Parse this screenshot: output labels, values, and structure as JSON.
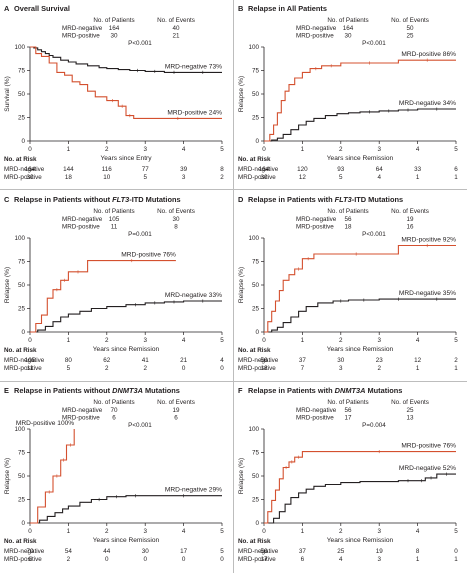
{
  "chart_data": [
    {
      "type": "line",
      "letter": "A",
      "title": "Overall Survival",
      "title_parts": [
        {
          "t": "Overall Survival",
          "i": false
        }
      ],
      "ylabel": "Survival (%)",
      "xlabel": "Years since Entry",
      "xlim": [
        0,
        5
      ],
      "ylim": [
        0,
        100
      ],
      "xticks": [
        "0",
        "1",
        "2",
        "3",
        "4",
        "5"
      ],
      "yticks": [
        "0",
        "25",
        "50",
        "75",
        "100"
      ],
      "table_headers": [
        "No. of Patients",
        "No. of Events"
      ],
      "table_rows": [
        [
          "MRD-negative",
          "164",
          "40"
        ],
        [
          "MRD-positive",
          "30",
          "21"
        ]
      ],
      "p_value": "P<0.001",
      "risk_title": "No. at Risk",
      "risk_rows": [
        {
          "label": "MRD-negative",
          "values": [
            "164",
            "144",
            "116",
            "77",
            "39",
            "8"
          ]
        },
        {
          "label": "MRD-positive",
          "values": [
            "30",
            "18",
            "10",
            "5",
            "3",
            "2"
          ]
        }
      ],
      "series": [
        {
          "name": "MRD-negative",
          "end_label": "MRD-negative",
          "end_value": "73%",
          "color": "#231f20",
          "x": [
            0,
            0.1,
            0.2,
            0.3,
            0.4,
            0.5,
            0.6,
            0.8,
            1.0,
            1.2,
            1.5,
            1.8,
            2.0,
            2.3,
            2.6,
            3.0,
            3.5,
            4.0,
            5.0
          ],
          "y": [
            100,
            99,
            97,
            95,
            93,
            91,
            89,
            86,
            84,
            82,
            80,
            78,
            77,
            76,
            75,
            74,
            73,
            73,
            73
          ]
        },
        {
          "name": "MRD-positive",
          "end_label": "MRD-positive",
          "end_value": "24%",
          "color": "#d4502f",
          "x": [
            0,
            0.15,
            0.3,
            0.5,
            0.7,
            0.9,
            1.1,
            1.3,
            1.5,
            1.7,
            2.0,
            2.3,
            2.5,
            2.7,
            5.0
          ],
          "y": [
            100,
            93,
            90,
            83,
            73,
            70,
            63,
            60,
            53,
            47,
            43,
            37,
            27,
            24,
            24
          ]
        }
      ]
    },
    {
      "type": "line",
      "letter": "B",
      "title": "Relapse in All Patients",
      "title_parts": [
        {
          "t": "Relapse in All Patients",
          "i": false
        }
      ],
      "ylabel": "Relapse (%)",
      "xlabel": "Years since Remission",
      "xlim": [
        0,
        5
      ],
      "ylim": [
        0,
        100
      ],
      "xticks": [
        "0",
        "1",
        "2",
        "3",
        "4",
        "5"
      ],
      "yticks": [
        "0",
        "25",
        "50",
        "75",
        "100"
      ],
      "table_headers": [
        "No. of Patients",
        "No. of Events"
      ],
      "table_rows": [
        [
          "MRD-negative",
          "164",
          "50"
        ],
        [
          "MRD-positive",
          "30",
          "25"
        ]
      ],
      "p_value": "P<0.001",
      "risk_title": "No. at Risk",
      "risk_rows": [
        {
          "label": "MRD-negative",
          "values": [
            "164",
            "120",
            "93",
            "64",
            "33",
            "6"
          ]
        },
        {
          "label": "MRD-positive",
          "values": [
            "30",
            "12",
            "5",
            "4",
            "1",
            "1"
          ]
        }
      ],
      "series": [
        {
          "name": "MRD-negative",
          "end_label": "MRD-negative",
          "end_value": "34%",
          "color": "#231f20",
          "x": [
            0,
            0.2,
            0.35,
            0.5,
            0.7,
            0.9,
            1.1,
            1.3,
            1.6,
            1.9,
            2.2,
            2.5,
            3.0,
            3.5,
            4.0,
            5.0
          ],
          "y": [
            0,
            1,
            3,
            7,
            12,
            17,
            21,
            24,
            27,
            29,
            30,
            31,
            32,
            33,
            34,
            34
          ]
        },
        {
          "name": "MRD-positive",
          "end_label": "MRD-positive",
          "end_value": "86%",
          "color": "#d4502f",
          "x": [
            0,
            0.15,
            0.25,
            0.35,
            0.45,
            0.55,
            0.65,
            0.8,
            1.0,
            1.2,
            1.5,
            2.0,
            3.5,
            5.0
          ],
          "y": [
            0,
            7,
            17,
            30,
            43,
            53,
            60,
            67,
            73,
            77,
            80,
            83,
            86,
            86
          ]
        }
      ]
    },
    {
      "type": "line",
      "letter": "C",
      "title": "Relapse in Patients without FLT3-ITD Mutations",
      "title_parts": [
        {
          "t": "Relapse in Patients without ",
          "i": false
        },
        {
          "t": "FLT3",
          "i": true
        },
        {
          "t": "-ITD Mutations",
          "i": false
        }
      ],
      "ylabel": "Relapse (%)",
      "xlabel": "Years since Remission",
      "xlim": [
        0,
        5
      ],
      "ylim": [
        0,
        100
      ],
      "xticks": [
        "0",
        "1",
        "2",
        "3",
        "4",
        "5"
      ],
      "yticks": [
        "0",
        "25",
        "50",
        "75",
        "100"
      ],
      "table_headers": [
        "No. of Patients",
        "No. of Events"
      ],
      "table_rows": [
        [
          "MRD-negative",
          "105",
          "30"
        ],
        [
          "MRD-positive",
          "11",
          "8"
        ]
      ],
      "p_value": "P=0.001",
      "risk_title": "No. at Risk",
      "risk_rows": [
        {
          "label": "MRD-negative",
          "values": [
            "105",
            "80",
            "62",
            "41",
            "21",
            "4"
          ]
        },
        {
          "label": "MRD-positive",
          "values": [
            "11",
            "5",
            "2",
            "2",
            "0",
            "0"
          ]
        }
      ],
      "series": [
        {
          "name": "MRD-negative",
          "end_label": "MRD-negative",
          "end_value": "33%",
          "color": "#231f20",
          "x": [
            0,
            0.2,
            0.4,
            0.6,
            0.8,
            1.0,
            1.3,
            1.6,
            2.0,
            2.5,
            3.0,
            3.5,
            4.0,
            5.0
          ],
          "y": [
            0,
            2,
            6,
            11,
            16,
            19,
            22,
            25,
            27,
            29,
            31,
            32,
            33,
            33
          ]
        },
        {
          "name": "MRD-positive",
          "end_label": "MRD-positive",
          "end_value": "76%",
          "color": "#d4502f",
          "x": [
            0,
            0.15,
            0.3,
            0.45,
            0.6,
            0.8,
            1.0,
            1.5,
            3.8
          ],
          "y": [
            0,
            9,
            18,
            36,
            45,
            55,
            64,
            76,
            76
          ]
        }
      ]
    },
    {
      "type": "line",
      "letter": "D",
      "title": "Relapse in Patients with FLT3-ITD Mutations",
      "title_parts": [
        {
          "t": "Relapse in Patients with ",
          "i": false
        },
        {
          "t": "FLT3",
          "i": true
        },
        {
          "t": "-ITD Mutations",
          "i": false
        }
      ],
      "ylabel": "Relapse (%)",
      "xlabel": "Years since Remission",
      "xlim": [
        0,
        5
      ],
      "ylim": [
        0,
        100
      ],
      "xticks": [
        "0",
        "1",
        "2",
        "3",
        "4",
        "5"
      ],
      "yticks": [
        "0",
        "25",
        "50",
        "75",
        "100"
      ],
      "table_headers": [
        "No. of Patients",
        "No. of Events"
      ],
      "table_rows": [
        [
          "MRD-negative",
          "56",
          "19"
        ],
        [
          "MRD-positive",
          "18",
          "16"
        ]
      ],
      "p_value": "P<0.001",
      "risk_title": "No. at Risk",
      "risk_rows": [
        {
          "label": "MRD-negative",
          "values": [
            "56",
            "37",
            "30",
            "23",
            "12",
            "2"
          ]
        },
        {
          "label": "MRD-positive",
          "values": [
            "18",
            "7",
            "3",
            "2",
            "1",
            "1"
          ]
        }
      ],
      "series": [
        {
          "name": "MRD-negative",
          "end_label": "MRD-negative",
          "end_value": "35%",
          "color": "#231f20",
          "x": [
            0,
            0.2,
            0.35,
            0.5,
            0.7,
            0.9,
            1.1,
            1.4,
            1.8,
            2.2,
            3.0,
            4.0,
            5.0
          ],
          "y": [
            0,
            2,
            5,
            10,
            16,
            22,
            27,
            31,
            33,
            34,
            35,
            35,
            35
          ]
        },
        {
          "name": "MRD-positive",
          "end_label": "MRD-positive",
          "end_value": "92%",
          "color": "#d4502f",
          "x": [
            0,
            0.1,
            0.2,
            0.3,
            0.4,
            0.5,
            0.65,
            0.8,
            1.0,
            1.3,
            3.5,
            5.0
          ],
          "y": [
            0,
            11,
            22,
            33,
            44,
            55,
            61,
            67,
            78,
            83,
            92,
            92
          ]
        }
      ]
    },
    {
      "type": "line",
      "letter": "E",
      "title": "Relapse in Patients without DNMT3A Mutations",
      "title_parts": [
        {
          "t": "Relapse in Patients without ",
          "i": false
        },
        {
          "t": "DNMT3A",
          "i": true
        },
        {
          "t": " Mutations",
          "i": false
        }
      ],
      "ylabel": "Relapse (%)",
      "xlabel": "Years since Remission",
      "xlim": [
        0,
        5
      ],
      "ylim": [
        0,
        100
      ],
      "xticks": [
        "0",
        "1",
        "2",
        "3",
        "4",
        "5"
      ],
      "yticks": [
        "0",
        "25",
        "50",
        "75",
        "100"
      ],
      "table_headers": [
        "No. of Patients",
        "No. of Events"
      ],
      "table_rows": [
        [
          "MRD-negative",
          "70",
          "19"
        ],
        [
          "MRD-positive",
          "6",
          "6"
        ]
      ],
      "p_value": "P<0.001",
      "risk_title": "No. at Risk",
      "risk_rows": [
        {
          "label": "MRD-negative",
          "values": [
            "70",
            "54",
            "44",
            "30",
            "17",
            "5"
          ]
        },
        {
          "label": "MRD-positive",
          "values": [
            "6",
            "2",
            "0",
            "0",
            "0",
            "0"
          ]
        }
      ],
      "series": [
        {
          "name": "MRD-negative",
          "end_label": "MRD-negative",
          "end_value": "29%",
          "color": "#231f20",
          "x": [
            0,
            0.25,
            0.45,
            0.65,
            0.85,
            1.0,
            1.3,
            1.6,
            2.0,
            2.5,
            3.0,
            5.0
          ],
          "y": [
            0,
            3,
            7,
            11,
            15,
            18,
            22,
            25,
            28,
            29,
            29,
            29
          ]
        },
        {
          "name": "MRD-positive",
          "end_label": "MRD-positive",
          "end_value": "100%",
          "color": "#d4502f",
          "x": [
            0,
            0.2,
            0.4,
            0.6,
            0.8,
            0.95,
            1.15
          ],
          "y": [
            0,
            17,
            33,
            50,
            67,
            83,
            100
          ]
        }
      ]
    },
    {
      "type": "line",
      "letter": "F",
      "title": "Relapse in Patients with DNMT3A Mutations",
      "title_parts": [
        {
          "t": "Relapse in Patients with ",
          "i": false
        },
        {
          "t": "DNMT3A",
          "i": true
        },
        {
          "t": " Mutations",
          "i": false
        }
      ],
      "ylabel": "Relapse (%)",
      "xlabel": "Years since Remission",
      "xlim": [
        0,
        5
      ],
      "ylim": [
        0,
        100
      ],
      "xticks": [
        "0",
        "1",
        "2",
        "3",
        "4",
        "5"
      ],
      "yticks": [
        "0",
        "25",
        "50",
        "75",
        "100"
      ],
      "table_headers": [
        "No. of Patients",
        "No. of Events"
      ],
      "table_rows": [
        [
          "MRD-negative",
          "56",
          "25"
        ],
        [
          "MRD-positive",
          "17",
          "13"
        ]
      ],
      "p_value": "P=0.004",
      "risk_title": "No. at Risk",
      "risk_rows": [
        {
          "label": "MRD-negative",
          "values": [
            "56",
            "37",
            "25",
            "19",
            "8",
            "0"
          ]
        },
        {
          "label": "MRD-positive",
          "values": [
            "17",
            "6",
            "4",
            "3",
            "1",
            "1"
          ]
        }
      ],
      "series": [
        {
          "name": "MRD-negative",
          "end_label": "MRD-negative",
          "end_value": "52%",
          "color": "#231f20",
          "x": [
            0,
            0.25,
            0.4,
            0.55,
            0.7,
            0.9,
            1.1,
            1.3,
            1.6,
            2.0,
            2.5,
            3.0,
            3.5,
            4.0,
            4.2,
            4.5,
            5.0
          ],
          "y": [
            0,
            5,
            12,
            20,
            27,
            32,
            36,
            39,
            41,
            43,
            44,
            44,
            45,
            45,
            48,
            52,
            52
          ]
        },
        {
          "name": "MRD-positive",
          "end_label": "MRD-positive",
          "end_value": "76%",
          "color": "#d4502f",
          "x": [
            0,
            0.1,
            0.2,
            0.3,
            0.4,
            0.5,
            0.65,
            0.8,
            1.0,
            5.0
          ],
          "y": [
            0,
            12,
            24,
            35,
            47,
            59,
            65,
            70,
            76,
            76
          ]
        }
      ]
    }
  ]
}
